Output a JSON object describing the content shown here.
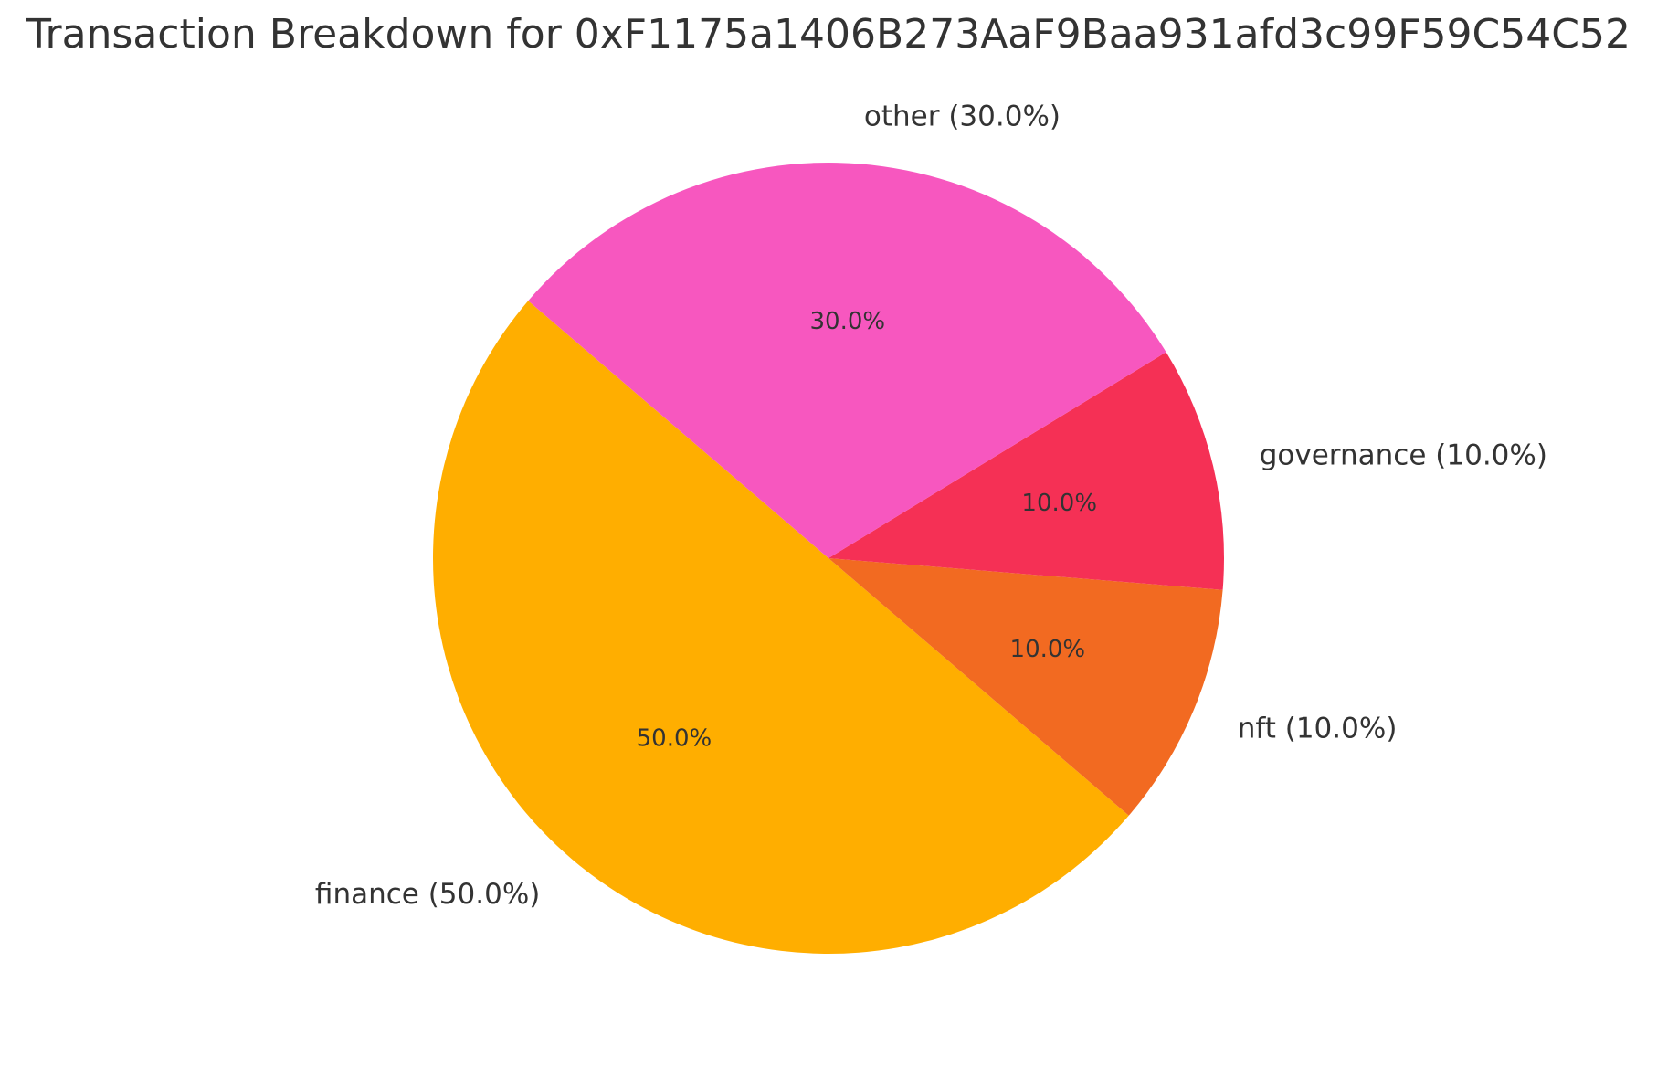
{
  "chart_data": {
    "type": "pie",
    "title": "Transaction Breakdown for 0xF1175a1406B273AaF9Baa931afd3c99F59C54C52",
    "slices": [
      {
        "label": "finance (50.0%)",
        "value": 50.0,
        "pct_text": "50.0%",
        "color": "#ffae00"
      },
      {
        "label": "nft (10.0%)",
        "value": 10.0,
        "pct_text": "10.0%",
        "color": "#f26a21"
      },
      {
        "label": "governance (10.0%)",
        "value": 10.0,
        "pct_text": "10.0%",
        "color": "#f53055"
      },
      {
        "label": "other (30.0%)",
        "value": 30.0,
        "pct_text": "30.0%",
        "color": "#f757bf"
      }
    ]
  }
}
